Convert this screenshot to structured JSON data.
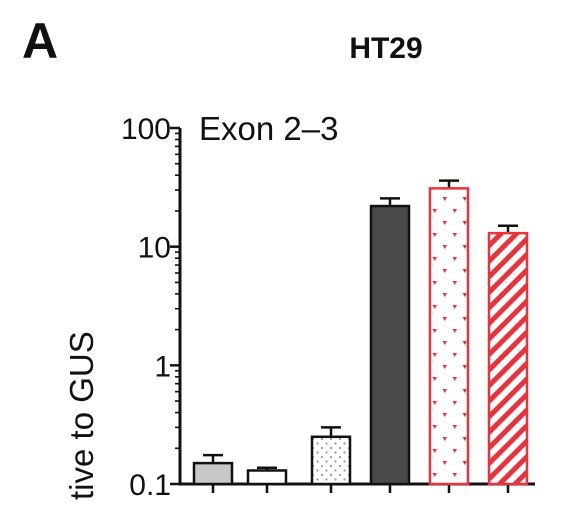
{
  "panel_label": "A",
  "chart_data": {
    "type": "bar",
    "title": "HT29",
    "subtitle": "Exon 2–3",
    "ylabel_visible": "tive to GUS",
    "xlabel": "",
    "yscale": "log",
    "ylim": [
      0.1,
      100
    ],
    "yticks": [
      "0.1",
      "1",
      "10",
      "100"
    ],
    "categories": [
      "",
      "",
      "",
      "",
      "",
      ""
    ],
    "values": [
      0.15,
      0.13,
      0.25,
      22,
      31,
      13
    ],
    "errors": [
      0.025,
      0.007,
      0.05,
      3.5,
      5,
      2
    ],
    "bars": [
      {
        "fill": "#c8c8c8",
        "pattern": "solid"
      },
      {
        "fill": "#ffffff",
        "pattern": "solid"
      },
      {
        "fill": "#ffffff",
        "pattern": "dots-grey"
      },
      {
        "fill": "#4a4a4a",
        "pattern": "solid"
      },
      {
        "fill": "#ffffff",
        "pattern": "dots-red"
      },
      {
        "fill": "#ffffff",
        "pattern": "stripes-red"
      }
    ],
    "colors": {
      "axis": "#111111",
      "accent_red": "#e8323c",
      "dark_bar": "#4a4a4a",
      "light_bar": "#c8c8c8"
    },
    "grid": false,
    "legend": "none"
  }
}
